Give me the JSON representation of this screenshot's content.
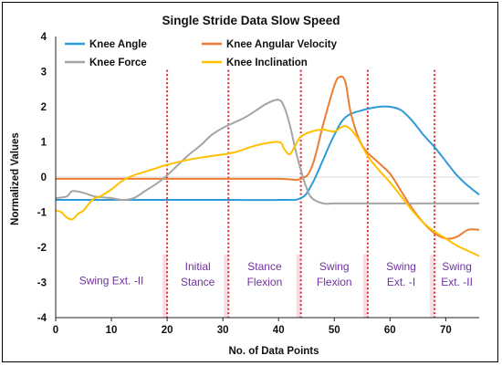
{
  "chart_data": {
    "type": "line",
    "title": "Single Stride Data Slow Speed",
    "xlabel": "No. of Data Points",
    "ylabel": "Normalized Values",
    "xlim": [
      0,
      76
    ],
    "ylim": [
      -4,
      4
    ],
    "x_ticks": [
      0,
      10,
      20,
      30,
      40,
      50,
      60,
      70
    ],
    "y_ticks": [
      -4,
      -3,
      -2,
      -1,
      0,
      1,
      2,
      3,
      4
    ],
    "grid": false,
    "legend_position": "top",
    "phase_boundaries": [
      20,
      31,
      44,
      56,
      68
    ],
    "phases": [
      {
        "label": [
          "Swing Ext. -II"
        ],
        "x_start": 0,
        "x_end": 20
      },
      {
        "label": [
          "Initial",
          "Stance"
        ],
        "x_start": 20,
        "x_end": 31
      },
      {
        "label": [
          "Stance",
          "Flexion"
        ],
        "x_start": 31,
        "x_end": 44
      },
      {
        "label": [
          "Swing",
          "Flexion"
        ],
        "x_start": 44,
        "x_end": 56
      },
      {
        "label": [
          "Swing",
          "Ext. -I"
        ],
        "x_start": 56,
        "x_end": 68
      },
      {
        "label": [
          "Swing",
          "Ext. -II"
        ],
        "x_start": 68,
        "x_end": 76
      }
    ],
    "series": [
      {
        "name": "Knee Angle",
        "color": "#2e9bd6",
        "x": [
          0,
          5,
          10,
          20,
          30,
          40,
          44,
          46,
          48,
          50,
          52,
          55,
          58,
          60,
          62,
          64,
          66,
          68,
          70,
          72,
          74,
          76
        ],
        "y": [
          -0.65,
          -0.65,
          -0.65,
          -0.65,
          -0.65,
          -0.65,
          -0.6,
          -0.2,
          0.5,
          1.2,
          1.7,
          1.9,
          2.0,
          2.0,
          1.9,
          1.6,
          1.2,
          0.85,
          0.45,
          0.05,
          -0.25,
          -0.5
        ]
      },
      {
        "name": "Knee Angular Velocity",
        "color": "#ed7d31",
        "x": [
          0,
          10,
          20,
          30,
          40,
          44,
          46,
          48,
          50,
          51,
          52,
          53,
          55,
          58,
          60,
          62,
          64,
          66,
          68,
          70,
          72,
          74,
          76
        ],
        "y": [
          -0.05,
          -0.05,
          -0.05,
          -0.05,
          -0.05,
          -0.05,
          0.3,
          1.5,
          2.6,
          2.85,
          2.7,
          1.8,
          0.9,
          0.4,
          0.1,
          -0.4,
          -0.9,
          -1.3,
          -1.6,
          -1.75,
          -1.7,
          -1.5,
          -1.5
        ]
      },
      {
        "name": "Knee Force",
        "color": "#a5a5a5",
        "x": [
          0,
          2,
          3,
          5,
          7,
          10,
          12,
          14,
          16,
          18,
          20,
          22,
          24,
          26,
          28,
          30,
          32,
          34,
          36,
          38,
          40,
          41,
          42,
          43,
          44,
          45,
          46,
          48,
          50,
          55,
          60,
          65,
          70,
          76
        ],
        "y": [
          -0.6,
          -0.55,
          -0.4,
          -0.45,
          -0.55,
          -0.6,
          -0.65,
          -0.6,
          -0.4,
          -0.2,
          0.05,
          0.35,
          0.65,
          0.9,
          1.2,
          1.4,
          1.55,
          1.7,
          1.9,
          2.1,
          2.2,
          2.0,
          1.5,
          0.8,
          0.2,
          -0.3,
          -0.6,
          -0.75,
          -0.75,
          -0.75,
          -0.75,
          -0.75,
          -0.75,
          -0.75
        ]
      },
      {
        "name": "Knee Inclination",
        "color": "#ffc000",
        "x": [
          0,
          1,
          2,
          3,
          4,
          5,
          6,
          7,
          8,
          10,
          12,
          14,
          16,
          18,
          20,
          24,
          28,
          32,
          36,
          40,
          41,
          42,
          43,
          44,
          46,
          48,
          50,
          52,
          54,
          56,
          58,
          60,
          62,
          64,
          66,
          68,
          70,
          72,
          74,
          76
        ],
        "y": [
          -0.95,
          -1.0,
          -1.15,
          -1.2,
          -1.05,
          -0.95,
          -0.75,
          -0.6,
          -0.55,
          -0.35,
          -0.1,
          0.05,
          0.15,
          0.25,
          0.35,
          0.5,
          0.6,
          0.7,
          0.9,
          1.0,
          0.8,
          0.65,
          0.9,
          1.15,
          1.3,
          1.35,
          1.3,
          1.45,
          1.15,
          0.6,
          0.2,
          -0.15,
          -0.55,
          -0.95,
          -1.3,
          -1.55,
          -1.75,
          -1.95,
          -2.1,
          -2.25
        ]
      }
    ]
  }
}
